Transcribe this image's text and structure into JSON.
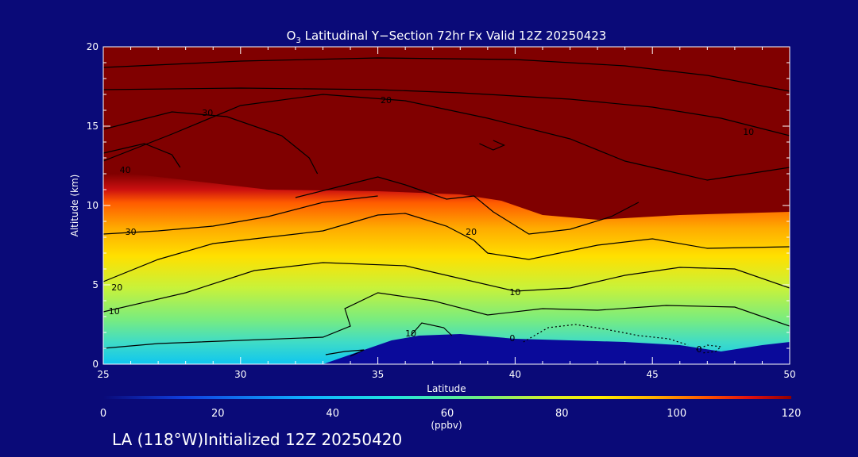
{
  "chart_data": {
    "type": "heatmap",
    "title_prefix": "O",
    "title_sub": "3",
    "title_rest": " Latitudinal Y−Section 72hr  Fx Valid 12Z 20250423",
    "xlabel": "Latitude",
    "ylabel": "Altitude (km)",
    "xlim": [
      25,
      50
    ],
    "ylim": [
      0,
      20
    ],
    "xticks": [
      "25",
      "30",
      "35",
      "40",
      "45",
      "50"
    ],
    "yticks": [
      "0",
      "5",
      "10",
      "15",
      "20"
    ],
    "colorbar": {
      "label": "(ppbv)",
      "range": [
        0,
        120
      ],
      "ticks": [
        "0",
        "20",
        "40",
        "60",
        "80",
        "100",
        "120"
      ]
    },
    "contour_labels": [
      {
        "text": "30",
        "lat": 28.8,
        "alt": 15.8
      },
      {
        "text": "20",
        "lat": 35.3,
        "alt": 16.6
      },
      {
        "text": "10",
        "lat": 48.5,
        "alt": 14.6
      },
      {
        "text": "40",
        "lat": 25.8,
        "alt": 12.2
      },
      {
        "text": "30",
        "lat": 26.0,
        "alt": 8.3
      },
      {
        "text": "20",
        "lat": 38.4,
        "alt": 8.3
      },
      {
        "text": "20",
        "lat": 25.5,
        "alt": 4.8
      },
      {
        "text": "10",
        "lat": 25.4,
        "alt": 3.3
      },
      {
        "text": "10",
        "lat": 40.0,
        "alt": 4.5
      },
      {
        "text": "10",
        "lat": 36.2,
        "alt": 1.9
      },
      {
        "text": "0",
        "lat": 39.9,
        "alt": 1.6
      },
      {
        "text": "0",
        "lat": 46.7,
        "alt": 0.9
      }
    ],
    "contour_lines": [
      {
        "level": "10",
        "pts": [
          [
            25,
            17.3
          ],
          [
            30,
            17.4
          ],
          [
            35,
            17.3
          ],
          [
            38,
            17.1
          ],
          [
            42,
            16.7
          ],
          [
            45,
            16.2
          ],
          [
            47.5,
            15.5
          ],
          [
            50,
            14.4
          ]
        ]
      },
      {
        "level": "10",
        "pts": [
          [
            25,
            18.7
          ],
          [
            30,
            19.1
          ],
          [
            35,
            19.3
          ],
          [
            40,
            19.2
          ],
          [
            44,
            18.8
          ],
          [
            47,
            18.2
          ],
          [
            50,
            17.2
          ]
        ]
      },
      {
        "level": "20",
        "pts": [
          [
            25,
            12.8
          ],
          [
            27.5,
            14.5
          ],
          [
            30,
            16.3
          ],
          [
            33,
            17.0
          ],
          [
            36,
            16.6
          ],
          [
            39,
            15.5
          ],
          [
            42,
            14.2
          ],
          [
            44,
            12.8
          ],
          [
            45.5,
            12.2
          ],
          [
            47,
            11.6
          ],
          [
            50,
            12.4
          ]
        ]
      },
      {
        "level": "30",
        "pts": [
          [
            25,
            14.8
          ],
          [
            27.5,
            15.9
          ],
          [
            29.5,
            15.6
          ],
          [
            31.5,
            14.4
          ],
          [
            32.5,
            13.0
          ],
          [
            32.8,
            12.0
          ]
        ]
      },
      {
        "level": "40",
        "pts": [
          [
            25,
            13.3
          ],
          [
            26.5,
            13.9
          ],
          [
            27.5,
            13.2
          ],
          [
            27.8,
            12.4
          ]
        ]
      },
      {
        "level": "20",
        "pts": [
          [
            32,
            10.5
          ],
          [
            35,
            11.8
          ],
          [
            36,
            11.3
          ],
          [
            37.5,
            10.4
          ],
          [
            38.5,
            10.6
          ],
          [
            39.2,
            9.6
          ],
          [
            40.5,
            8.2
          ],
          [
            42,
            8.5
          ],
          [
            43.5,
            9.3
          ],
          [
            44.5,
            10.2
          ]
        ]
      },
      {
        "level": "30",
        "pts": [
          [
            25,
            8.2
          ],
          [
            27,
            8.4
          ],
          [
            29,
            8.7
          ],
          [
            31,
            9.3
          ],
          [
            33,
            10.2
          ],
          [
            35,
            10.6
          ]
        ]
      },
      {
        "level": "20",
        "pts": [
          [
            25,
            5.2
          ],
          [
            27,
            6.6
          ],
          [
            29,
            7.6
          ],
          [
            31,
            8.0
          ],
          [
            33,
            8.4
          ],
          [
            35,
            9.4
          ],
          [
            36,
            9.5
          ],
          [
            37.5,
            8.7
          ],
          [
            38.5,
            7.8
          ],
          [
            39,
            7.0
          ],
          [
            40.5,
            6.6
          ],
          [
            43,
            7.5
          ],
          [
            45,
            7.9
          ],
          [
            47,
            7.3
          ],
          [
            50,
            7.4
          ]
        ]
      },
      {
        "level": "10",
        "pts": [
          [
            25,
            3.3
          ],
          [
            28,
            4.5
          ],
          [
            30.5,
            5.9
          ],
          [
            33,
            6.4
          ],
          [
            36,
            6.2
          ],
          [
            38,
            5.4
          ],
          [
            40,
            4.6
          ],
          [
            42,
            4.8
          ],
          [
            44,
            5.6
          ],
          [
            46,
            6.1
          ],
          [
            48,
            6.0
          ],
          [
            50,
            4.8
          ]
        ]
      },
      {
        "level": "10",
        "pts": [
          [
            25,
            1.0
          ],
          [
            27,
            1.3
          ],
          [
            30,
            1.5
          ],
          [
            33,
            1.7
          ],
          [
            34,
            2.4
          ],
          [
            33.8,
            3.5
          ],
          [
            35,
            4.5
          ],
          [
            37,
            4.0
          ],
          [
            39,
            3.1
          ],
          [
            41,
            3.5
          ],
          [
            43,
            3.4
          ],
          [
            45.5,
            3.7
          ],
          [
            48,
            3.6
          ],
          [
            50,
            2.4
          ]
        ]
      },
      {
        "level": "10",
        "pts": [
          [
            36.2,
            1.8
          ],
          [
            36.6,
            2.6
          ],
          [
            37.4,
            2.3
          ],
          [
            37.7,
            1.8
          ]
        ]
      },
      {
        "level": "0",
        "pts": [
          [
            40.3,
            1.4
          ],
          [
            41.2,
            2.3
          ],
          [
            42.2,
            2.5
          ],
          [
            43.3,
            2.2
          ],
          [
            44.5,
            1.8
          ],
          [
            45.6,
            1.6
          ],
          [
            46.3,
            1.2
          ]
        ]
      },
      {
        "level": "0",
        "pts": [
          [
            46.6,
            0.9
          ],
          [
            47.0,
            1.2
          ],
          [
            47.5,
            1.1
          ],
          [
            47.3,
            0.8
          ],
          [
            46.8,
            0.7
          ]
        ]
      },
      {
        "level": "",
        "pts": [
          [
            38.7,
            13.9
          ],
          [
            39.2,
            13.5
          ],
          [
            39.6,
            13.8
          ],
          [
            39.2,
            14.1
          ]
        ]
      },
      {
        "level": "",
        "pts": [
          [
            33.1,
            0.6
          ],
          [
            33.8,
            0.8
          ],
          [
            34.5,
            0.9
          ],
          [
            34.0,
            0.5
          ]
        ]
      }
    ]
  },
  "footer": {
    "text": "LA (118°W)Initialized 12Z 20250420"
  },
  "colors": {
    "background": "#0a0a78",
    "stratosphere": "#800000",
    "terrain": "#0a0a9a",
    "contour": "#000000"
  }
}
